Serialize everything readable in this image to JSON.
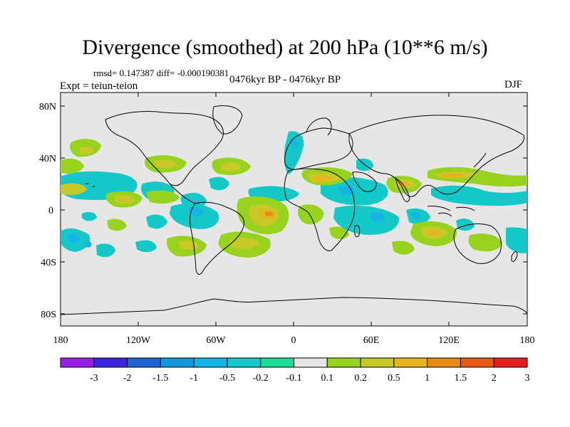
{
  "title": "Divergence (smoothed) at 200 hPa (10**6 m/s)",
  "stats": "rmsd= 0.147387 diff= -0.000190381",
  "period": "0476kyr BP - 0476kyr BP",
  "expt": "Expt = teiun-teion",
  "season": "DJF",
  "lat_labels": [
    "80N",
    "40N",
    "0",
    "40S",
    "80S"
  ],
  "lon_labels": [
    "180",
    "120W",
    "60W",
    "0",
    "60E",
    "120E",
    "180"
  ],
  "colorbar": {
    "labels": [
      "-3",
      "-2",
      "-1.5",
      "-1",
      "-0.5",
      "-0.2",
      "-0.1",
      "0.1",
      "0.2",
      "0.5",
      "1",
      "1.5",
      "2",
      "3"
    ],
    "colors": [
      "#9b1ee6",
      "#3c28dc",
      "#1e64d2",
      "#1496dc",
      "#14b4e6",
      "#14c8c8",
      "#1edc96",
      "#e6e6e6",
      "#96d21e",
      "#c8c828",
      "#e6b41e",
      "#e68c14",
      "#e65a14",
      "#e61e1e"
    ]
  },
  "colors": {
    "background": "#e6e6e6",
    "coast": "#000000"
  }
}
